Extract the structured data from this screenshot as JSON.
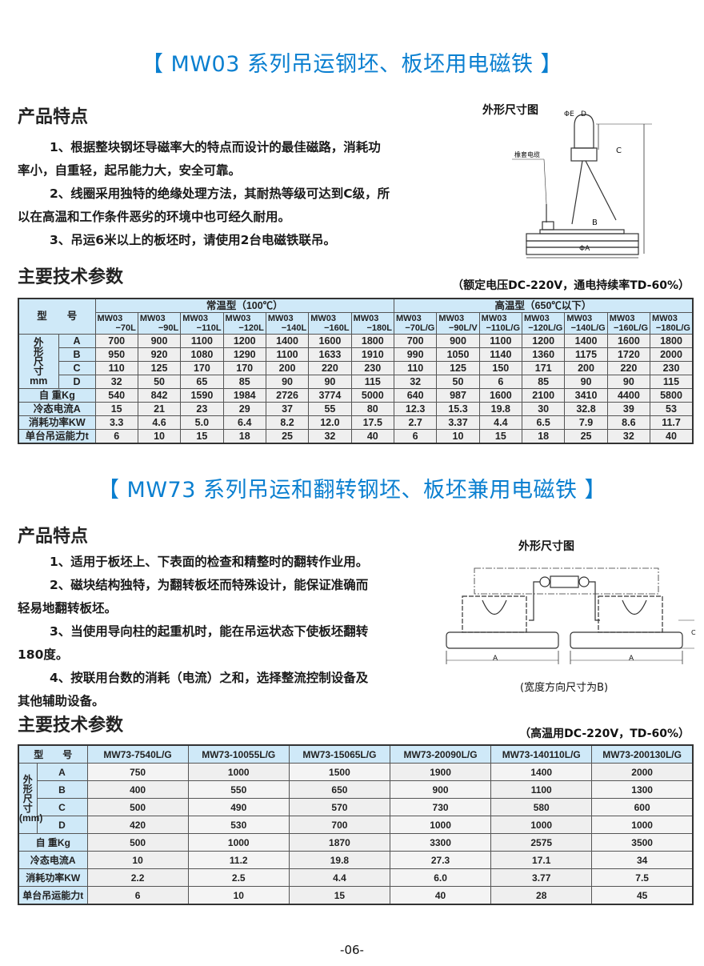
{
  "section1": {
    "title": "【 MW03 系列吊运钢坯、板坯用电磁铁 】",
    "features_heading": "产品特点",
    "features": [
      "1、根据整块钢坯导磁率大的特点而设计的最佳磁路，消耗功",
      "率小，自重轻，起吊能力大，安全可靠。",
      "2、线圈采用独特的绝缘处理方法，其耐热等级可达到C级，所",
      "以在高温和工作条件恶劣的环境中也可经久耐用。",
      "3、吊运6米以上的板坯时，请使用2台电磁铁联吊。"
    ],
    "figure_title": "外形尺寸图",
    "figure_labels": {
      "e": "ΦE",
      "d": "D",
      "c": "C",
      "b": "B",
      "a": "ΦA",
      "cable": "橡套电缆"
    },
    "params_heading": "主要技术参数",
    "params_note": "（额定电压DC-220V，通电持续率TD-60%）",
    "table": {
      "model_label": "型　　号",
      "group_normal": "常温型（100℃）",
      "group_high": "高温型（650℃以下）",
      "dim_label": [
        "外",
        "形",
        "尺",
        "寸",
        "mm"
      ],
      "models": [
        [
          "MW03",
          "−70L"
        ],
        [
          "MW03",
          "−90L"
        ],
        [
          "MW03",
          "−110L"
        ],
        [
          "MW03",
          "−120L"
        ],
        [
          "MW03",
          "−140L"
        ],
        [
          "MW03",
          "−160L"
        ],
        [
          "MW03",
          "−180L"
        ],
        [
          "MW03",
          "−70L/G"
        ],
        [
          "MW03",
          "−90L/V"
        ],
        [
          "MW03",
          "−110L/G"
        ],
        [
          "MW03",
          "−120L/G"
        ],
        [
          "MW03",
          "−140L/G"
        ],
        [
          "MW03",
          "−160L/G"
        ],
        [
          "MW03",
          "−180L/G"
        ]
      ],
      "dim_rows": [
        {
          "label": "A",
          "values": [
            "700",
            "900",
            "1100",
            "1200",
            "1400",
            "1600",
            "1800",
            "700",
            "900",
            "1100",
            "1200",
            "1400",
            "1600",
            "1800"
          ]
        },
        {
          "label": "B",
          "values": [
            "950",
            "920",
            "1080",
            "1290",
            "1100",
            "1633",
            "1910",
            "990",
            "1050",
            "1140",
            "1360",
            "1175",
            "1720",
            "2000"
          ]
        },
        {
          "label": "C",
          "values": [
            "110",
            "125",
            "170",
            "170",
            "200",
            "220",
            "230",
            "110",
            "125",
            "150",
            "171",
            "200",
            "220",
            "230"
          ]
        },
        {
          "label": "D",
          "values": [
            "32",
            "50",
            "65",
            "85",
            "90",
            "90",
            "115",
            "32",
            "50",
            "6",
            "85",
            "90",
            "90",
            "115"
          ]
        }
      ],
      "rows": [
        {
          "label": "自 重Kg",
          "values": [
            "540",
            "842",
            "1590",
            "1984",
            "2726",
            "3774",
            "5000",
            "640",
            "987",
            "1600",
            "2100",
            "3410",
            "4400",
            "5800"
          ]
        },
        {
          "label": "冷态电流A",
          "values": [
            "15",
            "21",
            "23",
            "29",
            "37",
            "55",
            "80",
            "12.3",
            "15.3",
            "19.8",
            "30",
            "32.8",
            "39",
            "53"
          ]
        },
        {
          "label": "消耗功率KW",
          "values": [
            "3.3",
            "4.6",
            "5.0",
            "6.4",
            "8.2",
            "12.0",
            "17.5",
            "2.7",
            "3.37",
            "4.4",
            "6.5",
            "7.9",
            "8.6",
            "11.7"
          ]
        },
        {
          "label": "单台吊运能力t",
          "values": [
            "6",
            "10",
            "15",
            "18",
            "25",
            "32",
            "40",
            "6",
            "10",
            "15",
            "18",
            "25",
            "32",
            "40"
          ]
        }
      ]
    }
  },
  "section2": {
    "title": "【 MW73 系列吊运和翻转钢坯、板坯兼用电磁铁 】",
    "features_heading": "产品特点",
    "features": [
      "1、适用于板坯上、下表面的检查和精整时的翻转作业用。",
      "2、磁块结构独特，为翻转板坯而特殊设计，能保证准确而",
      "轻易地翻转板坯。",
      "3、当使用导向柱的起重机时，能在吊运状态下使板坯翻转",
      "180度。",
      "4、按联用台数的消耗（电流）之和，选择整流控制设备及",
      "其他辅助设备。"
    ],
    "figure_title": "外形尺寸图",
    "figure_labels": {
      "a": "A",
      "c": "C"
    },
    "figure_caption": "(宽度方向尺寸为B)",
    "params_heading": "主要技术参数",
    "params_note": "（高温用DC-220V，TD-60%）",
    "table": {
      "model_label": "型　　号",
      "dim_label": [
        "外",
        "形",
        "尺",
        "寸",
        "(mm)"
      ],
      "models": [
        "MW73-7540L/G",
        "MW73-10055L/G",
        "MW73-15065L/G",
        "MW73-20090L/G",
        "MW73-140110L/G",
        "MW73-200130L/G"
      ],
      "dim_rows": [
        {
          "label": "A",
          "values": [
            "750",
            "1000",
            "1500",
            "1900",
            "1400",
            "2000"
          ]
        },
        {
          "label": "B",
          "values": [
            "400",
            "550",
            "650",
            "900",
            "1100",
            "1300"
          ]
        },
        {
          "label": "C",
          "values": [
            "500",
            "490",
            "570",
            "730",
            "580",
            "600"
          ]
        },
        {
          "label": "D",
          "values": [
            "420",
            "530",
            "700",
            "1000",
            "1000",
            "1000"
          ]
        }
      ],
      "rows": [
        {
          "label": "自 重Kg",
          "values": [
            "500",
            "1000",
            "1870",
            "3300",
            "2575",
            "3500"
          ]
        },
        {
          "label": "冷态电流A",
          "values": [
            "10",
            "11.2",
            "19.8",
            "27.3",
            "17.1",
            "34"
          ]
        },
        {
          "label": "消耗功率KW",
          "values": [
            "2.2",
            "2.5",
            "4.4",
            "6.0",
            "3.77",
            "7.5"
          ]
        },
        {
          "label": "单台吊运能力t",
          "values": [
            "6",
            "10",
            "15",
            "40",
            "28",
            "45"
          ]
        }
      ]
    }
  },
  "page_number": "-06-",
  "colors": {
    "title": "#0a7fd0",
    "header_cell": "#cfe9f8",
    "data_cell": "#efefef"
  }
}
